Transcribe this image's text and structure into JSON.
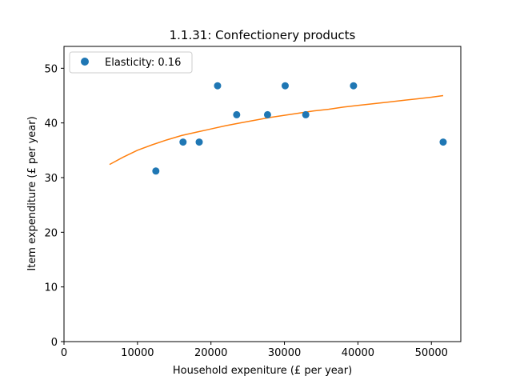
{
  "chart_data": {
    "type": "scatter",
    "title": "1.1.31: Confectionery products",
    "xlabel": "Household expeniture (£ per year)",
    "ylabel": "Item expenditure (£ per year)",
    "xlim": [
      0,
      54000
    ],
    "ylim": [
      0,
      54
    ],
    "xticks": [
      0,
      10000,
      20000,
      30000,
      40000,
      50000
    ],
    "yticks": [
      0,
      10,
      20,
      30,
      40,
      50
    ],
    "grid": false,
    "legend_position": "top-left",
    "series": [
      {
        "name": "Elasticity: 0.16",
        "kind": "scatter",
        "color": "#1f77b4",
        "x": [
          12500,
          16200,
          18400,
          20900,
          23500,
          27700,
          30100,
          32900,
          39400,
          51600
        ],
        "y": [
          31.2,
          36.5,
          36.5,
          46.8,
          41.5,
          41.5,
          46.8,
          41.5,
          46.8,
          36.5
        ]
      },
      {
        "kind": "line",
        "color": "#ff7f0e",
        "elasticity": 0.16,
        "x": [
          6200,
          8000,
          10000,
          12000,
          14000,
          16000,
          18000,
          20000,
          22000,
          24000,
          26000,
          28000,
          30000,
          32000,
          34000,
          36000,
          38000,
          40000,
          42000,
          44000,
          46000,
          48000,
          50000,
          51600
        ],
        "y": [
          32.4,
          33.7,
          35.0,
          36.0,
          36.9,
          37.7,
          38.3,
          38.9,
          39.5,
          40.0,
          40.5,
          41.0,
          41.4,
          41.8,
          42.2,
          42.5,
          42.9,
          43.2,
          43.5,
          43.8,
          44.1,
          44.4,
          44.7,
          45.0
        ]
      }
    ]
  }
}
